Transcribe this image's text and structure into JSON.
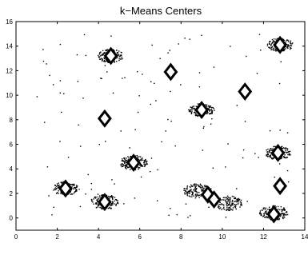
{
  "chart_data": {
    "type": "scatter",
    "title": "k−Means Centers",
    "xlabel": "",
    "ylabel": "",
    "xlim": [
      0,
      14
    ],
    "ylim": [
      -1,
      16
    ],
    "xticks": [
      0,
      2,
      4,
      6,
      8,
      10,
      12,
      14
    ],
    "yticks": [
      0,
      2,
      4,
      6,
      8,
      10,
      12,
      14,
      16
    ],
    "grid": false,
    "legend": "none",
    "marker_color": "#000000",
    "clusters": [
      {
        "center": [
          4.6,
          13.2
        ],
        "spread": 0.55,
        "count": 140
      },
      {
        "center": [
          12.8,
          14.1
        ],
        "spread": 0.55,
        "count": 140
      },
      {
        "center": [
          9.0,
          8.8
        ],
        "spread": 0.55,
        "count": 140
      },
      {
        "center": [
          5.7,
          4.5
        ],
        "spread": 0.6,
        "count": 150
      },
      {
        "center": [
          2.4,
          2.4
        ],
        "spread": 0.55,
        "count": 140
      },
      {
        "center": [
          4.3,
          1.3
        ],
        "spread": 0.6,
        "count": 140
      },
      {
        "center": [
          8.8,
          2.2
        ],
        "spread": 0.6,
        "count": 150
      },
      {
        "center": [
          10.3,
          1.2
        ],
        "spread": 0.6,
        "count": 140
      },
      {
        "center": [
          12.5,
          0.4
        ],
        "spread": 0.6,
        "count": 140
      },
      {
        "center": [
          12.7,
          5.3
        ],
        "spread": 0.55,
        "count": 140
      }
    ],
    "scatter_noise": {
      "count": 130,
      "xlim": [
        1,
        13.5
      ],
      "ylim": [
        0,
        15
      ]
    },
    "centers": [
      {
        "x": 4.6,
        "y": 13.2,
        "shape": "diamond"
      },
      {
        "x": 12.8,
        "y": 14.1,
        "shape": "diamond"
      },
      {
        "x": 7.5,
        "y": 11.9,
        "shape": "diamond"
      },
      {
        "x": 11.1,
        "y": 10.3,
        "shape": "diamond"
      },
      {
        "x": 9.0,
        "y": 8.8,
        "shape": "diamond"
      },
      {
        "x": 4.3,
        "y": 8.1,
        "shape": "diamond"
      },
      {
        "x": 5.7,
        "y": 4.5,
        "shape": "diamond"
      },
      {
        "x": 2.4,
        "y": 2.4,
        "shape": "diamond"
      },
      {
        "x": 4.3,
        "y": 1.3,
        "shape": "diamond"
      },
      {
        "x": 9.3,
        "y": 1.9,
        "shape": "diamond"
      },
      {
        "x": 9.6,
        "y": 1.5,
        "shape": "diamond"
      },
      {
        "x": 12.5,
        "y": 0.3,
        "shape": "diamond"
      },
      {
        "x": 12.7,
        "y": 5.3,
        "shape": "diamond"
      },
      {
        "x": 12.8,
        "y": 2.6,
        "shape": "diamond"
      }
    ]
  }
}
